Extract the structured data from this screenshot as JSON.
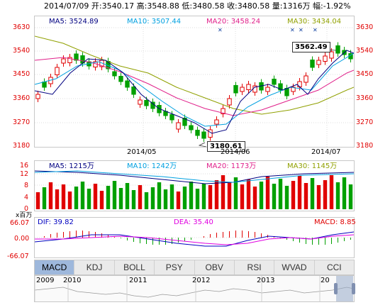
{
  "header": {
    "date": "2014/07/09",
    "open_label": "开:",
    "open": "3540.17",
    "high_label": "高:",
    "high": "3548.88",
    "low_label": "低:",
    "low": "3480.58",
    "close_label": "收:",
    "close": "3480.58",
    "volume_label": "量:",
    "volume": "1316万",
    "change_label": "幅:",
    "change": "-1.92%"
  },
  "price_panel": {
    "ma5": "MA5: 3524.89",
    "ma10": "MA10: 3507.44",
    "ma20": "MA20: 3458.24",
    "ma30": "MA30: 3434.04",
    "y_ticks": [
      "3630",
      "3540",
      "3450",
      "3360",
      "3270",
      "3180"
    ],
    "x_ticks": [
      "2014/05",
      "2014/06",
      "2014/07"
    ],
    "high_marker": "3562.49",
    "low_marker": "3180.61"
  },
  "volume_panel": {
    "ma5": "MA5: 1215万",
    "ma10": "MA10: 1242万",
    "ma20": "MA20: 1173万",
    "ma30": "MA30: 1145万",
    "unit": "x百万",
    "y_ticks": [
      "16",
      "12",
      "8",
      "4",
      "0"
    ]
  },
  "macd_panel": {
    "dif": "DIF: 39.82",
    "dea": "DEA: 35.40",
    "macd": "MACD: 8.85",
    "y_ticks": [
      "66.07",
      "0.00",
      "-66.07"
    ]
  },
  "tabs": [
    "MACD",
    "KDJ",
    "BOLL",
    "PSY",
    "OBV",
    "RSI",
    "WVAD",
    "CCI"
  ],
  "active_tab": "MACD",
  "overview": {
    "years": [
      "2009",
      "2010",
      "2011",
      "2012",
      "2013",
      "20"
    ]
  },
  "colors": {
    "up": "#e00000",
    "down": "#00a000",
    "ma5": "#000080",
    "ma10": "#00a0e0",
    "ma20": "#e0208a",
    "ma30": "#90a000"
  }
}
